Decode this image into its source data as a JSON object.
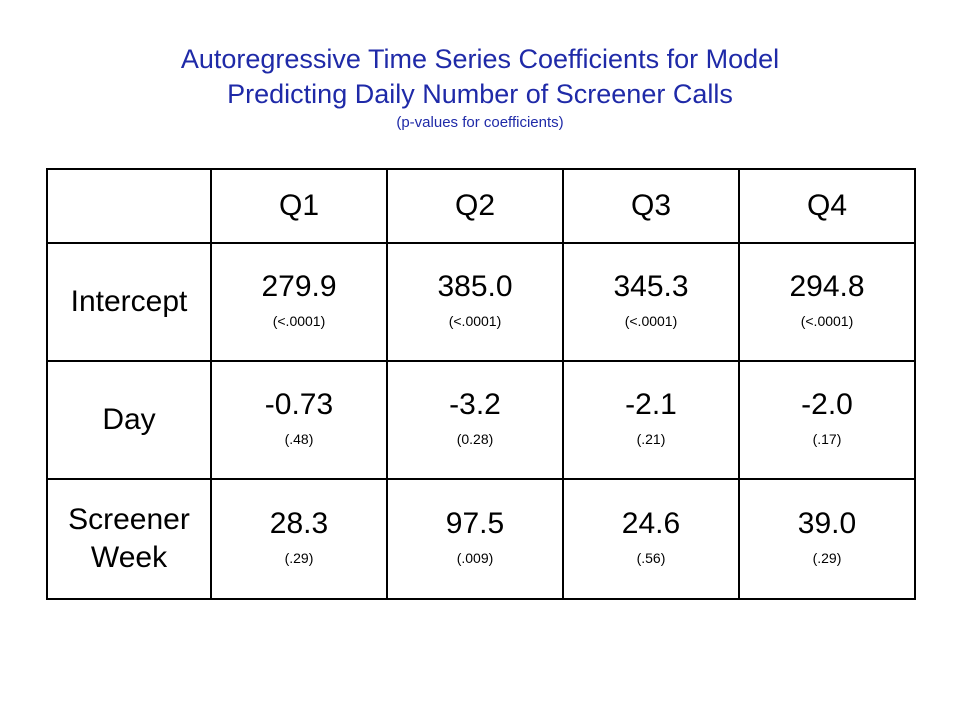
{
  "title": {
    "line1": "Autoregressive Time Series Coefficients for Model",
    "line2": "Predicting Daily Number of Screener Calls",
    "subtitle": "(p-values for coefficients)"
  },
  "colors": {
    "title": "#1f2aa8",
    "highlight_row": "#c8141c",
    "text": "#000000"
  },
  "table": {
    "columns": [
      "Q1",
      "Q2",
      "Q3",
      "Q4"
    ],
    "rows": [
      {
        "label": "Intercept",
        "cells": [
          {
            "value": "279.9",
            "p": "(<.0001)"
          },
          {
            "value": "385.0",
            "p": "(<.0001)"
          },
          {
            "value": "345.3",
            "p": "(<.0001)"
          },
          {
            "value": "294.8",
            "p": "(<.0001)"
          }
        ]
      },
      {
        "label": "Day",
        "cells": [
          {
            "value": "-0.73",
            "p": "(.48)"
          },
          {
            "value": "-3.2",
            "p": "(0.28)"
          },
          {
            "value": "-2.1",
            "p": "(.21)"
          },
          {
            "value": "-2.0",
            "p": "(.17)"
          }
        ]
      },
      {
        "label_line1": "Screener",
        "label_line2": "Week",
        "cells": [
          {
            "value": "28.3",
            "p": "(.29)"
          },
          {
            "value": "97.5",
            "p": "(.009)"
          },
          {
            "value": "24.6",
            "p": "(.56)"
          },
          {
            "value": "39.0",
            "p": "(.29)"
          }
        ]
      }
    ]
  }
}
